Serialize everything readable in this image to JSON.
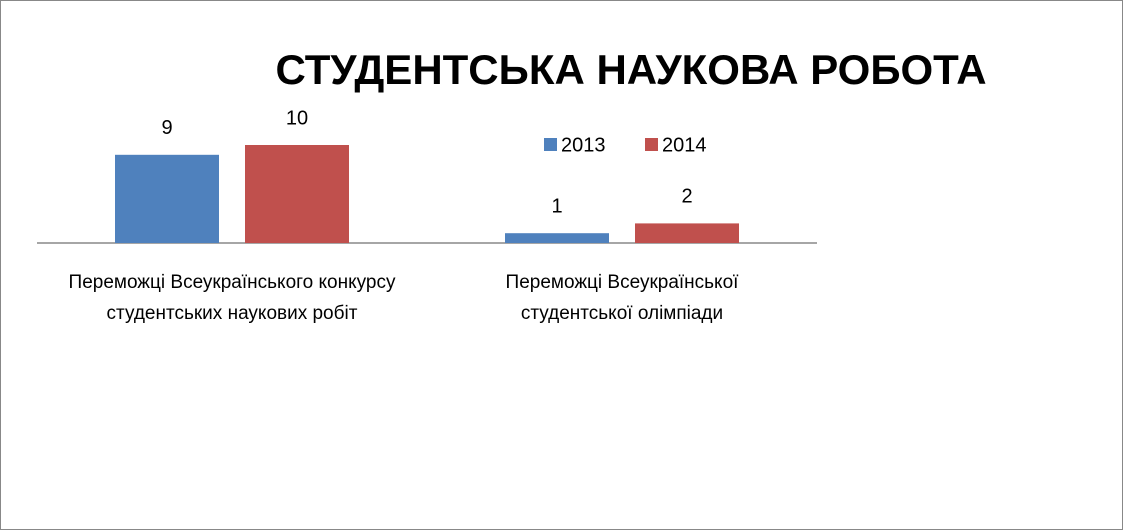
{
  "chart_data": {
    "type": "bar",
    "title": "СТУДЕНТСЬКА НАУКОВА РОБОТА",
    "categories": [
      "Переможці Всеукраїнського конкурсу студентських наукових робіт",
      "Переможці Всеукраїнської студентської олімпіади"
    ],
    "series": [
      {
        "name": "2013",
        "color": "#4f81bd",
        "values": [
          9,
          1
        ]
      },
      {
        "name": "2014",
        "color": "#c0504d",
        "values": [
          10,
          2
        ]
      }
    ],
    "legend": "top-right"
  }
}
